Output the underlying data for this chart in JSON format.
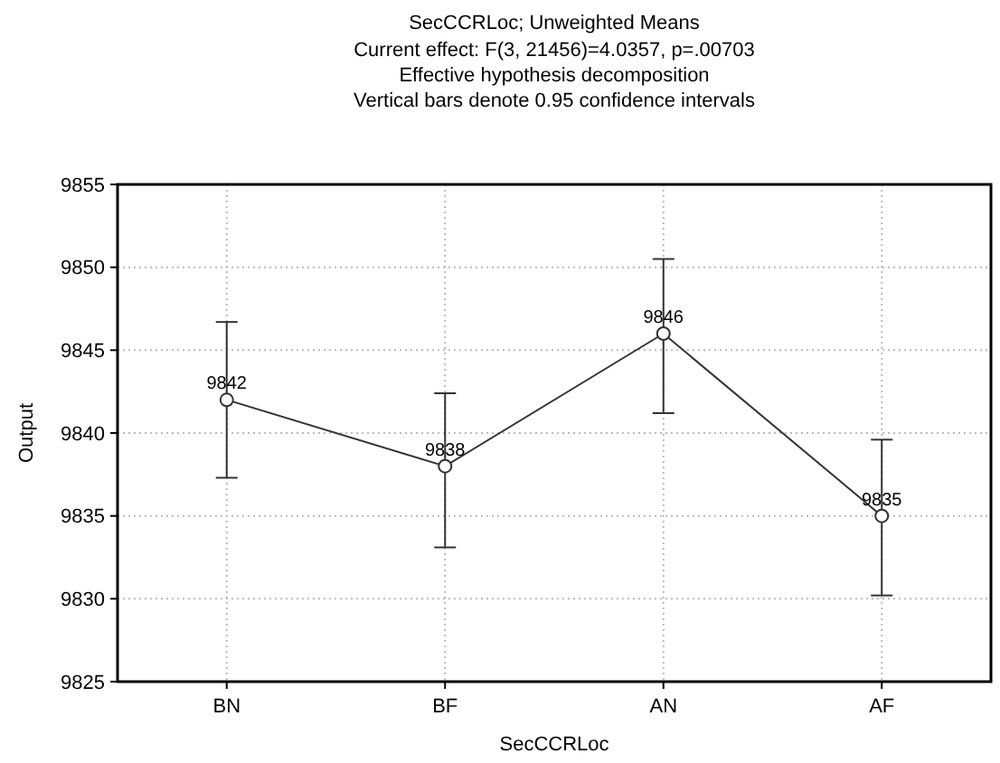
{
  "chart_data": {
    "type": "line",
    "title": "SecCCRLoc; Unweighted Means",
    "subtitle": "Current effect: F(3, 21456)=4.0357, p=.00703\nEffective hypothesis decomposition\nVertical bars denote 0.95 confidence intervals",
    "xlabel": "SecCCRLoc",
    "ylabel": "Output",
    "categories": [
      "BN",
      "BF",
      "AN",
      "AF"
    ],
    "series": [
      {
        "color": "#333333",
        "values": [
          9842,
          9838,
          9846,
          9835
        ],
        "errors": [
          [
            9837.3,
            9846.7
          ],
          [
            9833.1,
            9842.4
          ],
          [
            9841.2,
            9850.5
          ],
          [
            9830.2,
            9839.6
          ]
        ]
      }
    ],
    "ylim": [
      9825,
      9855
    ],
    "yticks": [
      9825,
      9830,
      9835,
      9840,
      9845,
      9850,
      9855
    ],
    "grid": true,
    "marker": "circle",
    "line_style": "solid",
    "data_labels": true
  }
}
